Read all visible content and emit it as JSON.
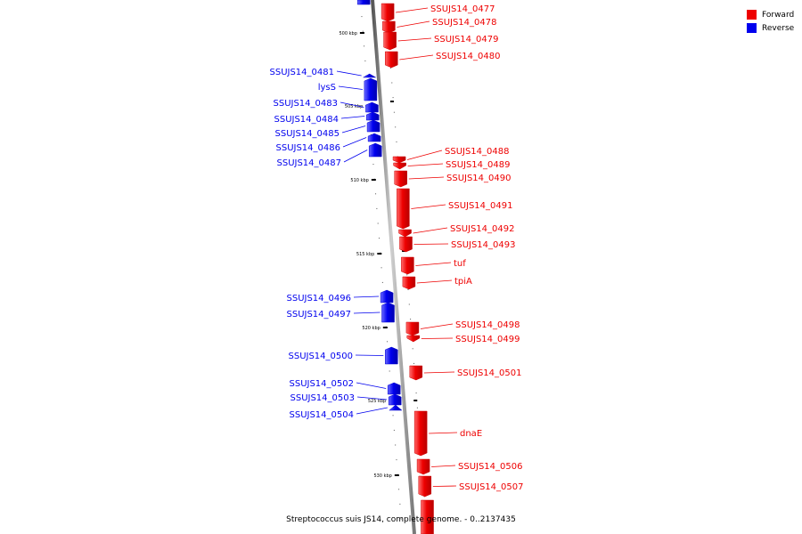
{
  "caption": "Streptococcus suis JS14, complete genome. - 0..2137435",
  "legend": [
    {
      "label": "Forward",
      "color": "#ee0000"
    },
    {
      "label": "Reverse",
      "color": "#0000ee"
    }
  ],
  "scale_ticks": [
    "500 kbp",
    "505 kbp",
    "510 kbp",
    "515 kbp",
    "520 kbp",
    "525 kbp",
    "530 kbp"
  ],
  "forward_genes": [
    "SSUJS14_0477",
    "SSUJS14_0478",
    "SSUJS14_0479",
    "SSUJS14_0480",
    "SSUJS14_0488",
    "SSUJS14_0489",
    "SSUJS14_0490",
    "SSUJS14_0491",
    "SSUJS14_0492",
    "SSUJS14_0493",
    "tuf",
    "tpiA",
    "SSUJS14_0498",
    "SSUJS14_0499",
    "SSUJS14_0501",
    "dnaE",
    "SSUJS14_0506",
    "SSUJS14_0507"
  ],
  "reverse_genes": [
    "SSUJS14_0481",
    "lysS",
    "SSUJS14_0483",
    "SSUJS14_0484",
    "SSUJS14_0485",
    "SSUJS14_0486",
    "SSUJS14_0487",
    "SSUJS14_0496",
    "SSUJS14_0497",
    "SSUJS14_0500",
    "SSUJS14_0502",
    "SSUJS14_0503",
    "SSUJS14_0504"
  ]
}
